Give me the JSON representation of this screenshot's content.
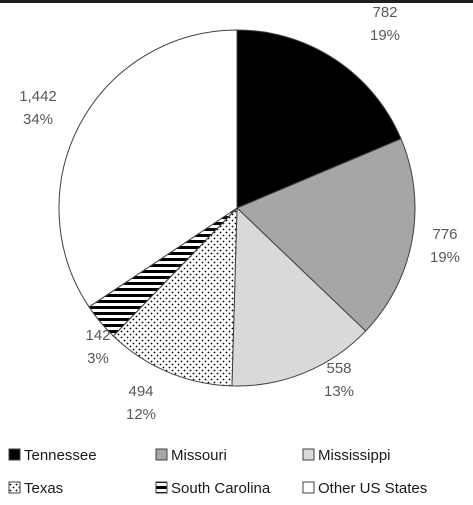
{
  "chart_data": {
    "type": "pie",
    "title": "",
    "colors": {
      "Tennessee": "#000000",
      "Missouri": "#a6a6a6",
      "Mississippi": "#d9d9d9",
      "Texas": "#ffffff",
      "South Carolina": "#ffffff",
      "Other US States": "#ffffff"
    },
    "patterns": {
      "Tennessee": "solid",
      "Missouri": "solid",
      "Mississippi": "solid",
      "Texas": "dots",
      "South Carolina": "horizontal-lines",
      "Other US States": "solid"
    },
    "slices": [
      {
        "label": "Tennessee",
        "value": 782,
        "value_text": "782",
        "percent_text": "19%"
      },
      {
        "label": "Missouri",
        "value": 776,
        "value_text": "776",
        "percent_text": "19%"
      },
      {
        "label": "Mississippi",
        "value": 558,
        "value_text": "558",
        "percent_text": "13%"
      },
      {
        "label": "Texas",
        "value": 494,
        "value_text": "494",
        "percent_text": "12%"
      },
      {
        "label": "South Carolina",
        "value": 142,
        "value_text": "142",
        "percent_text": "3%"
      },
      {
        "label": "Other US States",
        "value": 1442,
        "value_text": "1,442",
        "percent_text": "34%"
      }
    ],
    "legend_position": "bottom"
  }
}
